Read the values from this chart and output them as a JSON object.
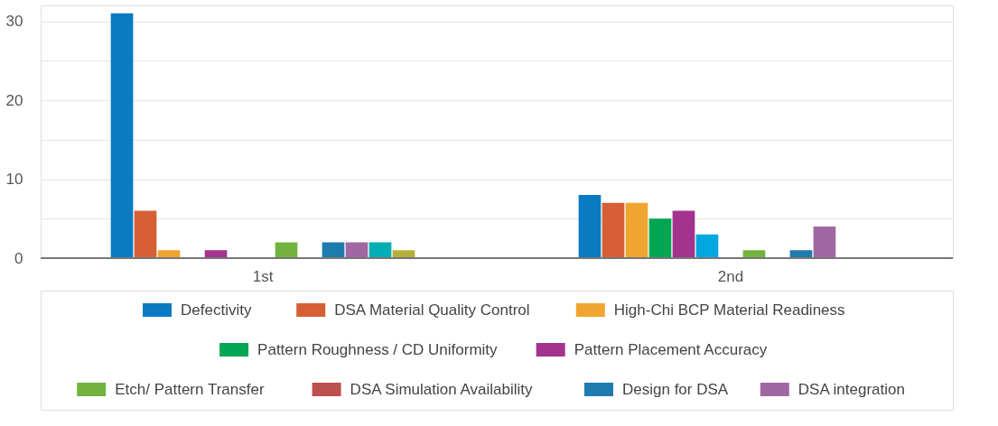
{
  "chart_data": {
    "type": "bar",
    "categories": [
      "1st",
      "2nd"
    ],
    "series": [
      {
        "name": "Defectivity",
        "color": "#0a7bc2",
        "values": [
          31,
          8
        ]
      },
      {
        "name": "DSA Material Quality Control",
        "color": "#d65f35",
        "values": [
          6,
          7
        ]
      },
      {
        "name": "High-Chi BCP Material Readiness",
        "color": "#f0a530",
        "values": [
          1,
          7
        ]
      },
      {
        "name": "Pattern Roughness / CD Uniformity",
        "color": "#00a651",
        "values": [
          0,
          5
        ]
      },
      {
        "name": "Pattern Placement Accuracy",
        "color": "#a3338f",
        "values": [
          1,
          6
        ]
      },
      {
        "color": "#00a8e0",
        "values": [
          0,
          3
        ]
      },
      {
        "color": "#c05050",
        "values": [
          0,
          0
        ]
      },
      {
        "name": "Etch/ Pattern Transfer",
        "color": "#72b340",
        "values": [
          2,
          1
        ]
      },
      {
        "name": "DSA Simulation Availability",
        "color": "#bd4f4f",
        "values": [
          0,
          0
        ]
      },
      {
        "name": "Design for DSA",
        "color": "#1f7ab0",
        "values": [
          2,
          1
        ]
      },
      {
        "name": "DSA integration",
        "color": "#a067a3",
        "values": [
          2,
          4
        ]
      },
      {
        "color": "#00aeb5",
        "values": [
          2,
          null
        ]
      },
      {
        "color": "#b4b03a",
        "values": [
          1,
          null
        ]
      }
    ],
    "ylim": [
      0,
      32
    ],
    "yticks": [
      0,
      {
        "value": 5,
        "label": null
      },
      10,
      {
        "value": 15,
        "label": null
      },
      20,
      {
        "value": 25,
        "label": null
      },
      30
    ],
    "grid": "y",
    "legend": "bottom"
  }
}
